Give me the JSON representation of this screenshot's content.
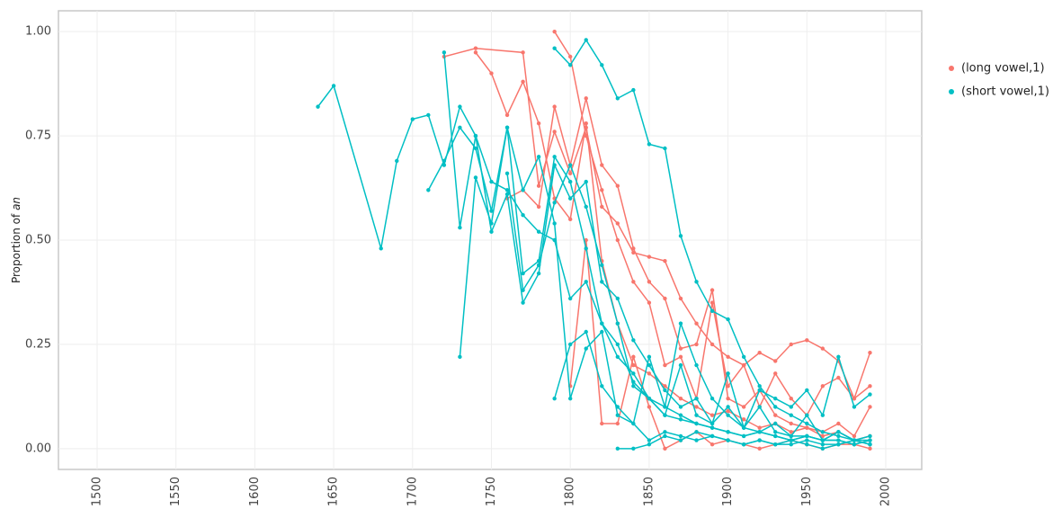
{
  "chart_data": {
    "type": "line",
    "ylabel": {
      "text": "Proportion of",
      "emphasis": "an"
    },
    "xlim": [
      1475.5,
      2022.8
    ],
    "ylim": [
      -0.05,
      1.05
    ],
    "xticks": [
      1500,
      1550,
      1600,
      1650,
      1700,
      1750,
      1800,
      1850,
      1900,
      1950,
      2000
    ],
    "yticks": [
      {
        "value": 0,
        "label": "0.00"
      },
      {
        "value": 0.25,
        "label": "0.25"
      },
      {
        "value": 0.5,
        "label": "0.50"
      },
      {
        "value": 0.75,
        "label": "0.75"
      },
      {
        "value": 1,
        "label": "1.00"
      }
    ],
    "grid": true,
    "legend_position": "right",
    "series": [
      {
        "name": "(long vowel,1)",
        "color": "#F8766D",
        "traces": [
          {
            "x": [
              1720,
              1740,
              1770,
              1780,
              1790,
              1800,
              1810,
              1820,
              1830,
              1840,
              1850,
              1860,
              1870,
              1880,
              1890,
              1900,
              1910,
              1920,
              1930,
              1940,
              1950,
              1960,
              1970,
              1980,
              1990
            ],
            "values": [
              0.94,
              0.96,
              0.95,
              0.63,
              0.76,
              0.66,
              0.77,
              0.58,
              0.54,
              0.47,
              0.46,
              0.45,
              0.36,
              0.3,
              0.25,
              0.22,
              0.2,
              0.23,
              0.21,
              0.25,
              0.26,
              0.24,
              0.21,
              0.12,
              0.23
            ]
          },
          {
            "x": [
              1740,
              1750,
              1760,
              1770,
              1780,
              1790,
              1800,
              1810,
              1820,
              1830,
              1840,
              1850,
              1860,
              1870,
              1880,
              1890,
              1900,
              1910,
              1920,
              1930,
              1940,
              1950,
              1960,
              1970,
              1980,
              1990
            ],
            "values": [
              0.95,
              0.9,
              0.8,
              0.88,
              0.78,
              0.6,
              0.55,
              0.78,
              0.45,
              0.3,
              0.2,
              0.18,
              0.15,
              0.12,
              0.1,
              0.08,
              0.09,
              0.07,
              0.05,
              0.06,
              0.04,
              0.05,
              0.03,
              0.04,
              0.02,
              0.03
            ]
          },
          {
            "x": [
              1790,
              1800,
              1810,
              1820,
              1830,
              1840,
              1850,
              1860,
              1870,
              1880,
              1890,
              1900,
              1910,
              1920,
              1930,
              1940,
              1950,
              1960,
              1970,
              1980,
              1990
            ],
            "values": [
              1.0,
              0.94,
              0.75,
              0.62,
              0.5,
              0.4,
              0.35,
              0.2,
              0.22,
              0.12,
              0.35,
              0.15,
              0.2,
              0.1,
              0.18,
              0.12,
              0.08,
              0.15,
              0.17,
              0.12,
              0.15
            ]
          },
          {
            "x": [
              1760,
              1770,
              1780,
              1790,
              1800,
              1810,
              1820,
              1830,
              1840,
              1850,
              1860,
              1870,
              1880,
              1890,
              1900,
              1910,
              1920,
              1930,
              1940,
              1950,
              1960,
              1970,
              1980,
              1990
            ],
            "values": [
              0.6,
              0.62,
              0.58,
              0.82,
              0.68,
              0.84,
              0.68,
              0.63,
              0.48,
              0.4,
              0.36,
              0.24,
              0.25,
              0.38,
              0.12,
              0.1,
              0.14,
              0.08,
              0.06,
              0.05,
              0.04,
              0.06,
              0.03,
              0.1
            ]
          },
          {
            "x": [
              1800,
              1810,
              1820,
              1830,
              1840,
              1850,
              1860,
              1870,
              1880,
              1890,
              1900,
              1910,
              1920,
              1930,
              1940,
              1950,
              1960,
              1970,
              1980,
              1990
            ],
            "values": [
              0.15,
              0.5,
              0.06,
              0.06,
              0.22,
              0.1,
              0.0,
              0.02,
              0.04,
              0.01,
              0.02,
              0.01,
              0.0,
              0.01,
              0.02,
              0.01,
              0.0,
              0.01,
              0.01,
              0.0
            ]
          }
        ]
      },
      {
        "name": "(short vowel,1)",
        "color": "#00BFC4",
        "traces": [
          {
            "x": [
              1640,
              1650,
              1680,
              1690,
              1700,
              1710,
              1720,
              1730,
              1740,
              1750,
              1760,
              1770,
              1780,
              1790,
              1800,
              1810,
              1820,
              1830,
              1840,
              1850,
              1860,
              1870,
              1880,
              1890,
              1900,
              1910,
              1920,
              1930,
              1940,
              1950,
              1960,
              1970,
              1980,
              1990
            ],
            "values": [
              0.82,
              0.87,
              0.48,
              0.69,
              0.79,
              0.8,
              0.68,
              0.82,
              0.75,
              0.64,
              0.62,
              0.56,
              0.52,
              0.5,
              0.36,
              0.4,
              0.3,
              0.22,
              0.18,
              0.12,
              0.1,
              0.08,
              0.06,
              0.05,
              0.04,
              0.03,
              0.04,
              0.03,
              0.02,
              0.03,
              0.02,
              0.02,
              0.01,
              0.02
            ]
          },
          {
            "x": [
              1710,
              1720,
              1730,
              1740,
              1750,
              1760,
              1770,
              1780,
              1790,
              1800,
              1810,
              1820,
              1830,
              1840,
              1850,
              1860,
              1870,
              1880,
              1890,
              1900,
              1910,
              1920,
              1930,
              1940,
              1950,
              1960,
              1970,
              1980,
              1990
            ],
            "values": [
              0.62,
              0.69,
              0.77,
              0.72,
              0.57,
              0.77,
              0.42,
              0.45,
              0.7,
              0.64,
              0.48,
              0.3,
              0.25,
              0.16,
              0.12,
              0.08,
              0.07,
              0.06,
              0.05,
              0.04,
              0.03,
              0.04,
              0.03,
              0.02,
              0.03,
              0.02,
              0.02,
              0.01,
              0.02
            ]
          },
          {
            "x": [
              1790,
              1800,
              1810,
              1820,
              1830,
              1840,
              1850,
              1860,
              1870,
              1880,
              1890,
              1900,
              1910,
              1920,
              1930,
              1940,
              1950,
              1960,
              1970,
              1980,
              1990
            ],
            "values": [
              0.96,
              0.92,
              0.98,
              0.92,
              0.84,
              0.86,
              0.73,
              0.72,
              0.51,
              0.4,
              0.33,
              0.31,
              0.22,
              0.15,
              0.1,
              0.08,
              0.06,
              0.04,
              0.03,
              0.02,
              0.02
            ]
          },
          {
            "x": [
              1720,
              1730,
              1740,
              1750,
              1760,
              1770,
              1780,
              1790,
              1800,
              1810,
              1820,
              1830,
              1840,
              1850,
              1860,
              1870,
              1880,
              1890,
              1900,
              1910,
              1920,
              1930,
              1940,
              1950,
              1960,
              1970,
              1980,
              1990
            ],
            "values": [
              0.95,
              0.53,
              0.75,
              0.52,
              0.61,
              0.35,
              0.42,
              0.68,
              0.6,
              0.64,
              0.4,
              0.36,
              0.26,
              0.2,
              0.14,
              0.1,
              0.12,
              0.06,
              0.1,
              0.05,
              0.04,
              0.06,
              0.03,
              0.03,
              0.02,
              0.04,
              0.02,
              0.01
            ]
          },
          {
            "x": [
              1730,
              1740,
              1750,
              1760,
              1770,
              1780,
              1790,
              1800,
              1810,
              1820,
              1830,
              1840,
              1850,
              1860,
              1870,
              1880,
              1890,
              1900,
              1910,
              1920,
              1930,
              1940,
              1950,
              1960,
              1970,
              1980,
              1990
            ],
            "values": [
              0.22,
              0.65,
              0.54,
              0.77,
              0.62,
              0.7,
              0.54,
              0.12,
              0.24,
              0.28,
              0.08,
              0.06,
              0.02,
              0.04,
              0.03,
              0.02,
              0.03,
              0.02,
              0.01,
              0.02,
              0.01,
              0.01,
              0.02,
              0.01,
              0.01,
              0.02,
              0.01
            ]
          },
          {
            "x": [
              1760,
              1770,
              1780,
              1790,
              1800,
              1810,
              1820,
              1830,
              1840,
              1850,
              1860,
              1870,
              1880,
              1890,
              1900,
              1910,
              1920,
              1930,
              1940,
              1950,
              1960,
              1970,
              1980,
              1990
            ],
            "values": [
              0.66,
              0.38,
              0.44,
              0.59,
              0.68,
              0.58,
              0.44,
              0.3,
              0.15,
              0.12,
              0.08,
              0.2,
              0.08,
              0.06,
              0.18,
              0.05,
              0.14,
              0.12,
              0.1,
              0.14,
              0.08,
              0.22,
              0.1,
              0.13
            ]
          },
          {
            "x": [
              1830,
              1840,
              1850,
              1860,
              1870,
              1880,
              1890,
              1900,
              1910,
              1920,
              1930,
              1940,
              1950,
              1960,
              1970,
              1980,
              1990
            ],
            "values": [
              0.0,
              0.0,
              0.01,
              0.03,
              0.02,
              0.04,
              0.03,
              0.02,
              0.01,
              0.02,
              0.01,
              0.02,
              0.01,
              0.0,
              0.01,
              0.02,
              0.01
            ]
          },
          {
            "x": [
              1790,
              1800,
              1810,
              1820,
              1830,
              1840,
              1850,
              1860,
              1870,
              1880,
              1890,
              1900,
              1910,
              1920,
              1930,
              1940,
              1950,
              1960,
              1970,
              1980,
              1990
            ],
            "values": [
              0.12,
              0.25,
              0.28,
              0.15,
              0.1,
              0.06,
              0.22,
              0.1,
              0.3,
              0.2,
              0.12,
              0.08,
              0.05,
              0.1,
              0.04,
              0.03,
              0.08,
              0.02,
              0.04,
              0.02,
              0.03
            ]
          }
        ]
      }
    ]
  }
}
